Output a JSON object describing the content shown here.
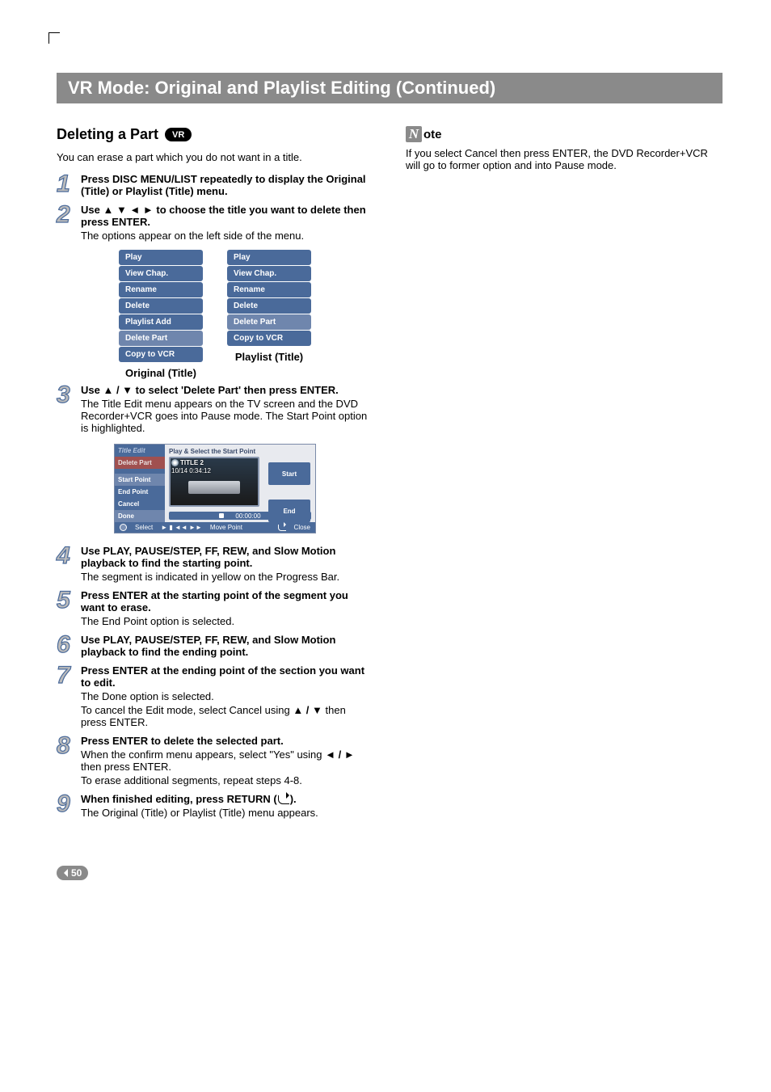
{
  "header": {
    "title": "VR Mode: Original and Playlist Editing (Continued)"
  },
  "section": {
    "title": "Deleting a Part",
    "badge": "VR"
  },
  "intro": "You can erase a part which you do not want in a title.",
  "steps": {
    "1": {
      "bold": "Press DISC MENU/LIST repeatedly to display the Original (Title) or Playlist (Title) menu."
    },
    "2": {
      "bold": "Use ▲ ▼ ◄ ► to choose the title you want to delete then press ENTER.",
      "text": "The options appear on the left side of the menu."
    },
    "3": {
      "bold": "Use ▲ / ▼ to select 'Delete Part' then press ENTER.",
      "text": "The Title Edit menu appears on the TV screen and the DVD Recorder+VCR goes into Pause mode. The Start Point option is highlighted."
    },
    "4": {
      "bold": "Use PLAY, PAUSE/STEP, FF, REW, and Slow Motion playback to find the starting point.",
      "text": "The segment is indicated in yellow on the Progress Bar."
    },
    "5": {
      "bold": "Press ENTER at the starting point of the segment you want to erase.",
      "text": "The End Point option is selected."
    },
    "6": {
      "bold": "Use PLAY, PAUSE/STEP, FF, REW, and Slow Motion playback to find the ending point."
    },
    "7": {
      "bold": "Press ENTER at the ending point of the section you want to edit.",
      "text1": "The Done option is selected.",
      "text2a": "To cancel the Edit mode, select Cancel using ",
      "text2b": "▲ / ▼",
      "text2c": " then press ENTER."
    },
    "8": {
      "bold": "Press ENTER to delete the selected part.",
      "text1a": "When the confirm menu appears, select \"Yes\" using ",
      "text1b": "◄ / ►",
      "text1c": " then press ENTER.",
      "text2": "To erase additional segments, repeat steps 4-8."
    },
    "9": {
      "bold_a": "When finished editing, press RETURN (",
      "bold_b": ").",
      "text": "The Original (Title) or Playlist (Title) menu appears."
    }
  },
  "menus": {
    "original": {
      "items": [
        "Play",
        "View Chap.",
        "Rename",
        "Delete",
        "Playlist Add",
        "Delete Part",
        "Copy to VCR"
      ],
      "caption": "Original (Title)"
    },
    "playlist": {
      "items": [
        "Play",
        "View Chap.",
        "Rename",
        "Delete",
        "Delete Part",
        "Copy to VCR"
      ],
      "caption": "Playlist (Title)"
    },
    "highlight_index": 5,
    "highlight_index_pl": 4,
    "colors": {
      "item_bg": "#4a6a9a",
      "item_hl": "#6f86ad",
      "text": "#ffffff"
    }
  },
  "title_edit_panel": {
    "left_items": {
      "title": "Title Edit",
      "delete_part": "Delete Part",
      "start_point": "Start Point",
      "end_point": "End Point",
      "cancel": "Cancel",
      "done": "Done"
    },
    "header": "Play & Select the Start Point",
    "meta_title": "TITLE 2",
    "meta_line2": "10/14    0:34:12",
    "start_label": "Start",
    "end_label": "End",
    "time": "00:00:00",
    "footer_select": "Select",
    "footer_move": "Move Point",
    "footer_close": "Close",
    "transport_glyphs": "►  ▮  ◄◄  ►►"
  },
  "note": {
    "heading": "ote",
    "text": "If you select Cancel then press ENTER, the DVD Recorder+VCR will go to former option and into Pause mode."
  },
  "page_number": "50",
  "colors": {
    "header_bg": "#8a8a8a",
    "step_num_stroke": "#4a6a9a",
    "step_num_fill": "#bcbcbc",
    "panel_blue": "#4a6a9a"
  }
}
